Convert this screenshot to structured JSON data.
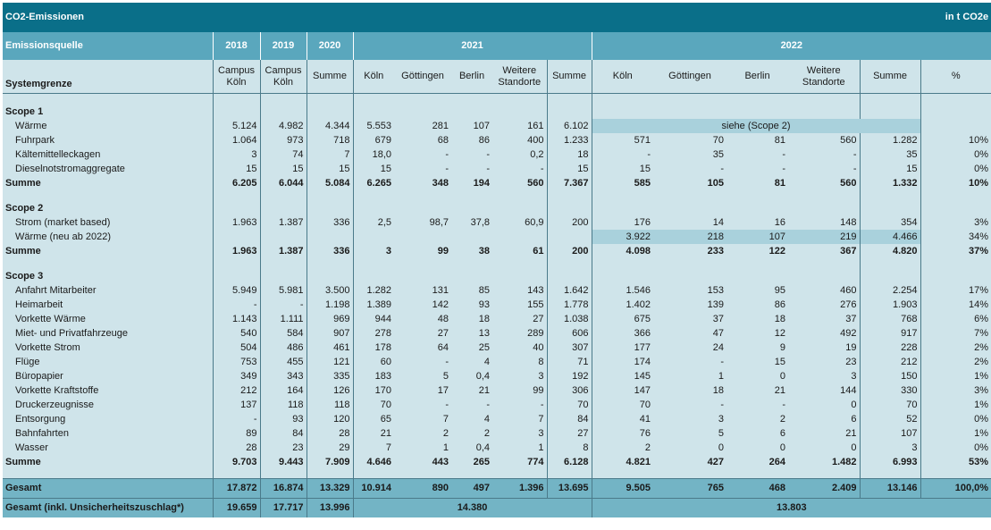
{
  "title": "CO2-Emissionen",
  "unit": "in t CO2e",
  "header": {
    "source_label": "Emissionsquelle",
    "years": [
      "2018",
      "2019",
      "2020",
      "2021",
      "2022"
    ],
    "system_label": "Systemgrenze",
    "sub_2018": [
      "Campus",
      "Köln"
    ],
    "sub_2019": [
      "Campus",
      "Köln"
    ],
    "sub_2020": "Summe",
    "sub_2021": [
      "Köln",
      "Göttingen",
      "Berlin",
      "Weitere Standorte",
      "Summe"
    ],
    "sub_2022": [
      "Köln",
      "Göttingen",
      "Berlin",
      "Weitere Standorte",
      "Summe",
      "%"
    ],
    "weitere_top": "Weitere",
    "weitere_bottom": "Standorte"
  },
  "scope1": {
    "title": "Scope 1",
    "siehe": "siehe (Scope 2)",
    "rows": [
      {
        "name": "Wärme",
        "v": [
          "5.124",
          "4.982",
          "4.344",
          "5.553",
          "281",
          "107",
          "161",
          "6.102",
          "",
          "",
          "",
          "",
          "",
          ""
        ]
      },
      {
        "name": "Fuhrpark",
        "v": [
          "1.064",
          "973",
          "718",
          "679",
          "68",
          "86",
          "400",
          "1.233",
          "571",
          "70",
          "81",
          "560",
          "1.282",
          "10%"
        ]
      },
      {
        "name": "Kältemittelleckagen",
        "v": [
          "3",
          "74",
          "7",
          "18,0",
          "-",
          "-",
          "0,2",
          "18",
          "-",
          "35",
          "-",
          "-",
          "35",
          "0%"
        ]
      },
      {
        "name": "Dieselnotstromaggregate",
        "v": [
          "15",
          "15",
          "15",
          "15",
          "-",
          "-",
          "-",
          "15",
          "15",
          "-",
          "-",
          "-",
          "15",
          "0%"
        ]
      }
    ],
    "sum": {
      "name": "Summe",
      "v": [
        "6.205",
        "6.044",
        "5.084",
        "6.265",
        "348",
        "194",
        "560",
        "7.367",
        "585",
        "105",
        "81",
        "560",
        "1.332",
        "10%"
      ]
    }
  },
  "scope2": {
    "title": "Scope 2",
    "rows": [
      {
        "name": "Strom (market based)",
        "v": [
          "1.963",
          "1.387",
          "336",
          "2,5",
          "98,7",
          "37,8",
          "60,9",
          "200",
          "176",
          "14",
          "16",
          "148",
          "354",
          "3%"
        ]
      },
      {
        "name": "Wärme (neu ab 2022)",
        "v": [
          "",
          "",
          "",
          "",
          "",
          "",
          "",
          "",
          "3.922",
          "218",
          "107",
          "219",
          "4.466",
          "34%"
        ]
      }
    ],
    "sum": {
      "name": "Summe",
      "v": [
        "1.963",
        "1.387",
        "336",
        "3",
        "99",
        "38",
        "61",
        "200",
        "4.098",
        "233",
        "122",
        "367",
        "4.820",
        "37%"
      ]
    }
  },
  "scope3": {
    "title": "Scope 3",
    "rows": [
      {
        "name": "Anfahrt Mitarbeiter",
        "v": [
          "5.949",
          "5.981",
          "3.500",
          "1.282",
          "131",
          "85",
          "143",
          "1.642",
          "1.546",
          "153",
          "95",
          "460",
          "2.254",
          "17%"
        ]
      },
      {
        "name": "Heimarbeit",
        "v": [
          "-",
          "-",
          "1.198",
          "1.389",
          "142",
          "93",
          "155",
          "1.778",
          "1.402",
          "139",
          "86",
          "276",
          "1.903",
          "14%"
        ]
      },
      {
        "name": "Vorkette Wärme",
        "v": [
          "1.143",
          "1.111",
          "969",
          "944",
          "48",
          "18",
          "27",
          "1.038",
          "675",
          "37",
          "18",
          "37",
          "768",
          "6%"
        ]
      },
      {
        "name": "Miet- und Privatfahrzeuge",
        "v": [
          "540",
          "584",
          "907",
          "278",
          "27",
          "13",
          "289",
          "606",
          "366",
          "47",
          "12",
          "492",
          "917",
          "7%"
        ]
      },
      {
        "name": "Vorkette Strom",
        "v": [
          "504",
          "486",
          "461",
          "178",
          "64",
          "25",
          "40",
          "307",
          "177",
          "24",
          "9",
          "19",
          "228",
          "2%"
        ]
      },
      {
        "name": "Flüge",
        "v": [
          "753",
          "455",
          "121",
          "60",
          "-",
          "4",
          "8",
          "71",
          "174",
          "-",
          "15",
          "23",
          "212",
          "2%"
        ]
      },
      {
        "name": "Büropapier",
        "v": [
          "349",
          "343",
          "335",
          "183",
          "5",
          "0,4",
          "3",
          "192",
          "145",
          "1",
          "0",
          "3",
          "150",
          "1%"
        ]
      },
      {
        "name": "Vorkette Kraftstoffe",
        "v": [
          "212",
          "164",
          "126",
          "170",
          "17",
          "21",
          "99",
          "306",
          "147",
          "18",
          "21",
          "144",
          "330",
          "3%"
        ]
      },
      {
        "name": "Druckerzeugnisse",
        "v": [
          "137",
          "118",
          "118",
          "70",
          "-",
          "-",
          "-",
          "70",
          "70",
          "-",
          "-",
          "0",
          "70",
          "1%"
        ]
      },
      {
        "name": "Entsorgung",
        "v": [
          "-",
          "93",
          "120",
          "65",
          "7",
          "4",
          "7",
          "84",
          "41",
          "3",
          "2",
          "6",
          "52",
          "0%"
        ]
      },
      {
        "name": "Bahnfahrten",
        "v": [
          "89",
          "84",
          "28",
          "21",
          "2",
          "2",
          "3",
          "27",
          "76",
          "5",
          "6",
          "21",
          "107",
          "1%"
        ]
      },
      {
        "name": "Wasser",
        "v": [
          "28",
          "23",
          "29",
          "7",
          "1",
          "0,4",
          "1",
          "8",
          "2",
          "0",
          "0",
          "0",
          "3",
          "0%"
        ]
      }
    ],
    "sum": {
      "name": "Summe",
      "v": [
        "9.703",
        "9.443",
        "7.909",
        "4.646",
        "443",
        "265",
        "774",
        "6.128",
        "4.821",
        "427",
        "264",
        "1.482",
        "6.993",
        "53%"
      ]
    }
  },
  "gesamt": {
    "name": "Gesamt",
    "v": [
      "17.872",
      "16.874",
      "13.329",
      "10.914",
      "890",
      "497",
      "1.396",
      "13.695",
      "9.505",
      "765",
      "468",
      "2.409",
      "13.146",
      "100,0%"
    ]
  },
  "gesamt2": {
    "name": "Gesamt (inkl. Unsicherheitszuschlag*)",
    "v2018": "19.659",
    "v2019": "17.717",
    "v2020": "13.996",
    "v2021": "14.380",
    "v2022": "13.803"
  }
}
